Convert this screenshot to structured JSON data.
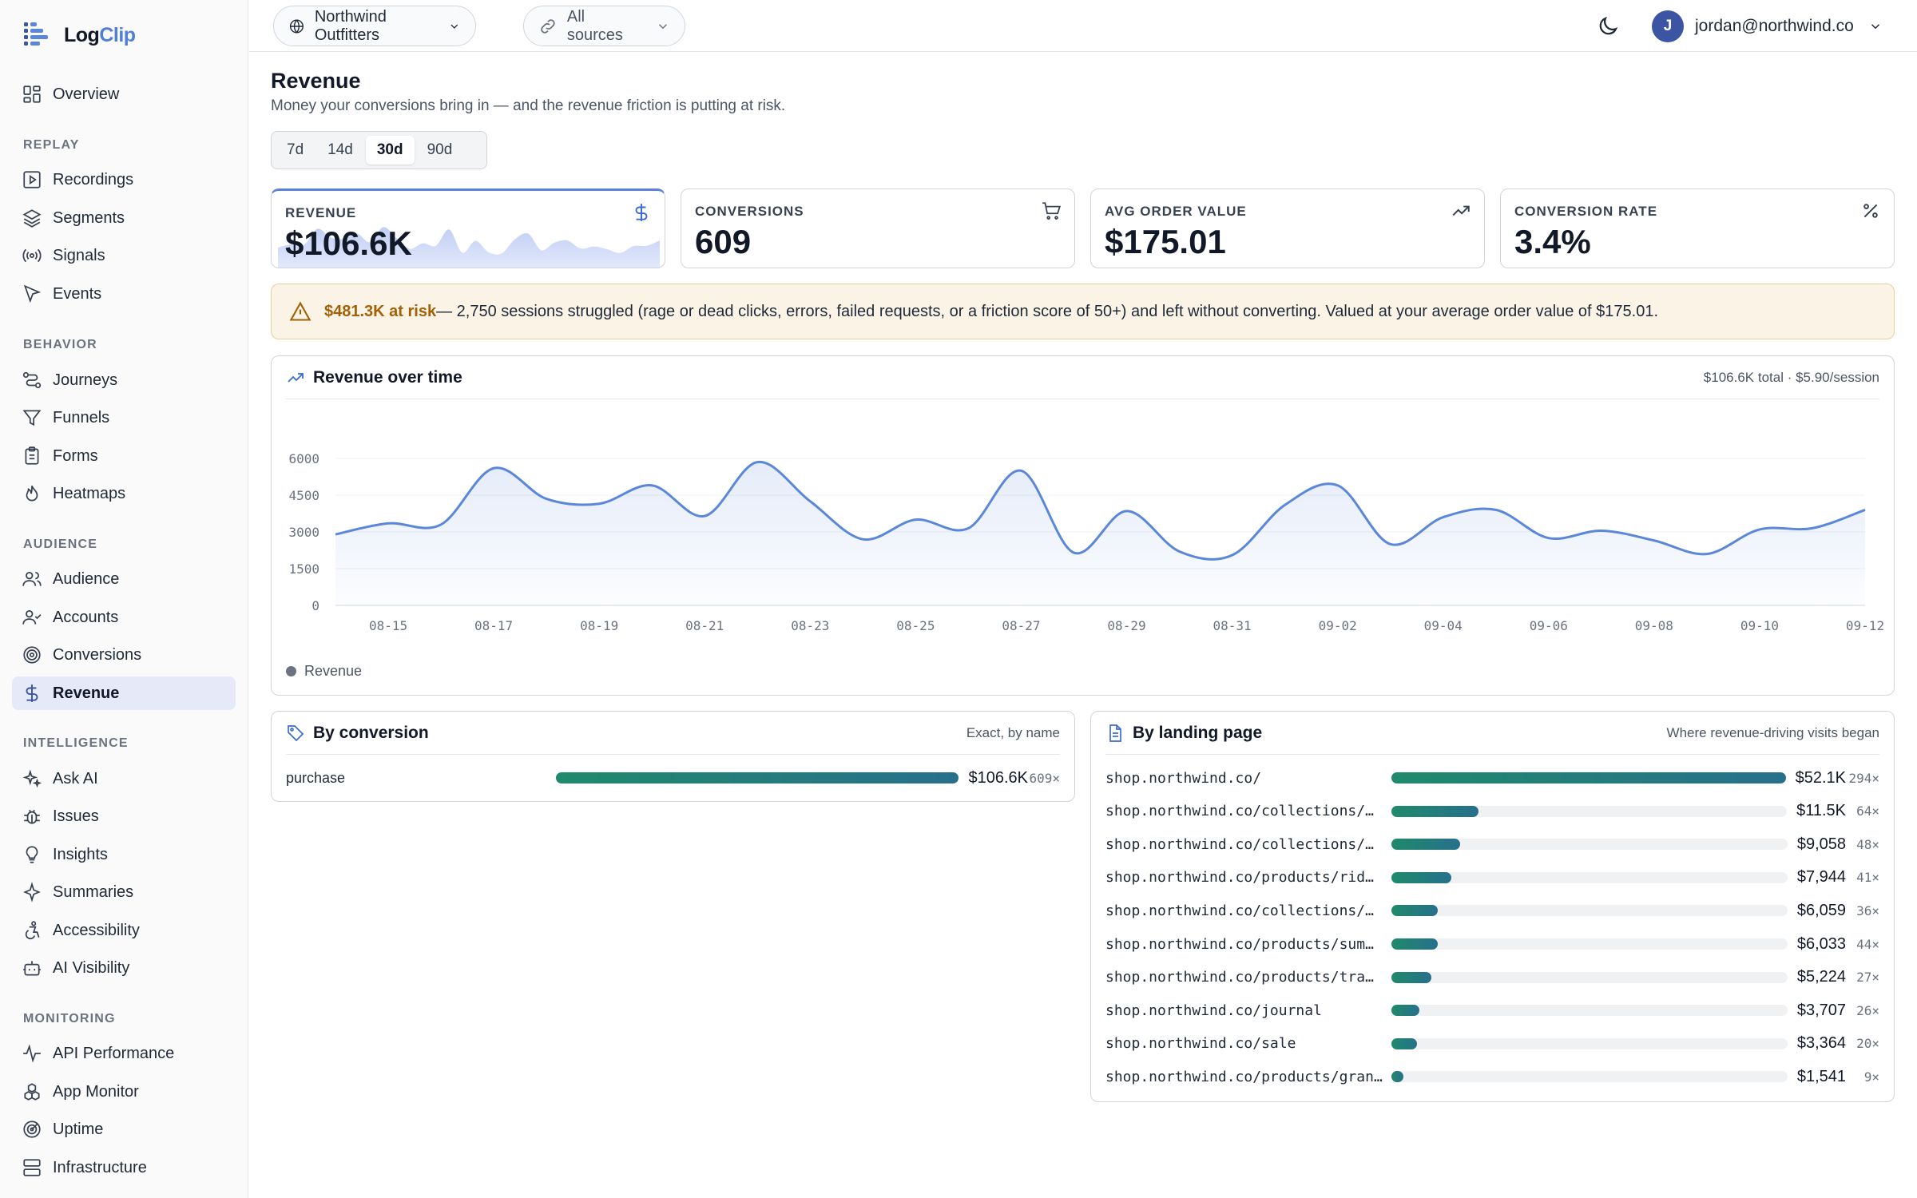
{
  "app": {
    "name_part1": "Log",
    "name_part2": "Clip"
  },
  "sidebar": {
    "overview": "Overview",
    "groups": {
      "replay": "REPLAY",
      "behavior": "BEHAVIOR",
      "audience": "AUDIENCE",
      "intelligence": "INTELLIGENCE",
      "monitoring": "MONITORING"
    },
    "items": {
      "recordings": "Recordings",
      "segments": "Segments",
      "signals": "Signals",
      "events": "Events",
      "journeys": "Journeys",
      "funnels": "Funnels",
      "forms": "Forms",
      "heatmaps": "Heatmaps",
      "audience": "Audience",
      "accounts": "Accounts",
      "conversions": "Conversions",
      "revenue": "Revenue",
      "ask_ai": "Ask AI",
      "issues": "Issues",
      "insights": "Insights",
      "summaries": "Summaries",
      "accessibility": "Accessibility",
      "ai_visibility": "AI Visibility",
      "api_performance": "API Performance",
      "app_monitor": "App Monitor",
      "uptime": "Uptime",
      "infrastructure": "Infrastructure"
    },
    "active": "revenue"
  },
  "topbar": {
    "workspace": "Northwind Outfitters",
    "source_filter": "All sources",
    "user_initial": "J",
    "user_email": "jordan@northwind.co"
  },
  "header": {
    "title": "Revenue",
    "subtitle": "Money your conversions bring in — and the revenue friction is putting at risk."
  },
  "range_tabs": [
    "7d",
    "14d",
    "30d",
    "90d"
  ],
  "range_active": "30d",
  "kpis": {
    "revenue": {
      "label": "REVENUE",
      "value": "$106.6K"
    },
    "conversions": {
      "label": "CONVERSIONS",
      "value": "609"
    },
    "aov": {
      "label": "AVG ORDER VALUE",
      "value": "$175.01"
    },
    "rate": {
      "label": "CONVERSION RATE",
      "value": "3.4%"
    }
  },
  "alert": {
    "amount": "$481.3K at risk",
    "text": " — 2,750 sessions struggled (rage or dead clicks, errors, failed requests, or a friction score of 50+) and left without converting. Valued at your average order value of $175.01."
  },
  "chart_panel": {
    "title": "Revenue over time",
    "note": "$106.6K total · $5.90/session",
    "legend": "Revenue"
  },
  "chart_data": {
    "type": "area",
    "title": "Revenue over time",
    "xlabel": "",
    "ylabel": "",
    "ylim": [
      0,
      6000
    ],
    "yticks": [
      0,
      1500,
      3000,
      4500,
      6000
    ],
    "xticks": [
      "08-15",
      "08-17",
      "08-19",
      "08-21",
      "08-23",
      "08-25",
      "08-27",
      "08-29",
      "08-31",
      "09-02",
      "09-04",
      "09-06",
      "09-08",
      "09-10",
      "09-12"
    ],
    "x": [
      "08-14",
      "08-15",
      "08-16",
      "08-17",
      "08-18",
      "08-19",
      "08-20",
      "08-21",
      "08-22",
      "08-23",
      "08-24",
      "08-25",
      "08-26",
      "08-27",
      "08-28",
      "08-29",
      "08-30",
      "08-31",
      "09-01",
      "09-02",
      "09-03",
      "09-04",
      "09-05",
      "09-06",
      "09-07",
      "09-08",
      "09-09",
      "09-10",
      "09-11",
      "09-12"
    ],
    "series": [
      {
        "name": "Revenue",
        "color": "#5b87da",
        "values": [
          2900,
          3350,
          3300,
          5600,
          4350,
          4150,
          4900,
          3650,
          5850,
          4250,
          2700,
          3500,
          3150,
          5500,
          2150,
          3850,
          2200,
          2050,
          4100,
          4900,
          2500,
          3600,
          3900,
          2750,
          3050,
          2650,
          2100,
          3100,
          3150,
          3900
        ]
      }
    ],
    "grid": true,
    "legend": "bottom-left"
  },
  "conversion_panel": {
    "title": "By conversion",
    "note": "Exact, by name",
    "rows": [
      {
        "label": "purchase",
        "value": "$106.6K",
        "count": "609×",
        "share": 1.0
      }
    ]
  },
  "landing_panel": {
    "title": "By landing page",
    "note": "Where revenue-driving visits began",
    "rows": [
      {
        "label": "shop.northwind.co/",
        "value": "$52.1K",
        "count": "294×",
        "share": 1.0
      },
      {
        "label": "shop.northwind.co/collections/…",
        "value": "$11.5K",
        "count": "64×",
        "share": 0.221
      },
      {
        "label": "shop.northwind.co/collections/…",
        "value": "$9,058",
        "count": "48×",
        "share": 0.174
      },
      {
        "label": "shop.northwind.co/products/rid…",
        "value": "$7,944",
        "count": "41×",
        "share": 0.152
      },
      {
        "label": "shop.northwind.co/collections/…",
        "value": "$6,059",
        "count": "36×",
        "share": 0.116
      },
      {
        "label": "shop.northwind.co/products/sum…",
        "value": "$6,033",
        "count": "44×",
        "share": 0.116
      },
      {
        "label": "shop.northwind.co/products/tra…",
        "value": "$5,224",
        "count": "27×",
        "share": 0.1
      },
      {
        "label": "shop.northwind.co/journal",
        "value": "$3,707",
        "count": "26×",
        "share": 0.071
      },
      {
        "label": "shop.northwind.co/sale",
        "value": "$3,364",
        "count": "20×",
        "share": 0.065
      },
      {
        "label": "shop.northwind.co/products/gran…",
        "value": "$1,541",
        "count": "9×",
        "share": 0.03
      }
    ]
  }
}
